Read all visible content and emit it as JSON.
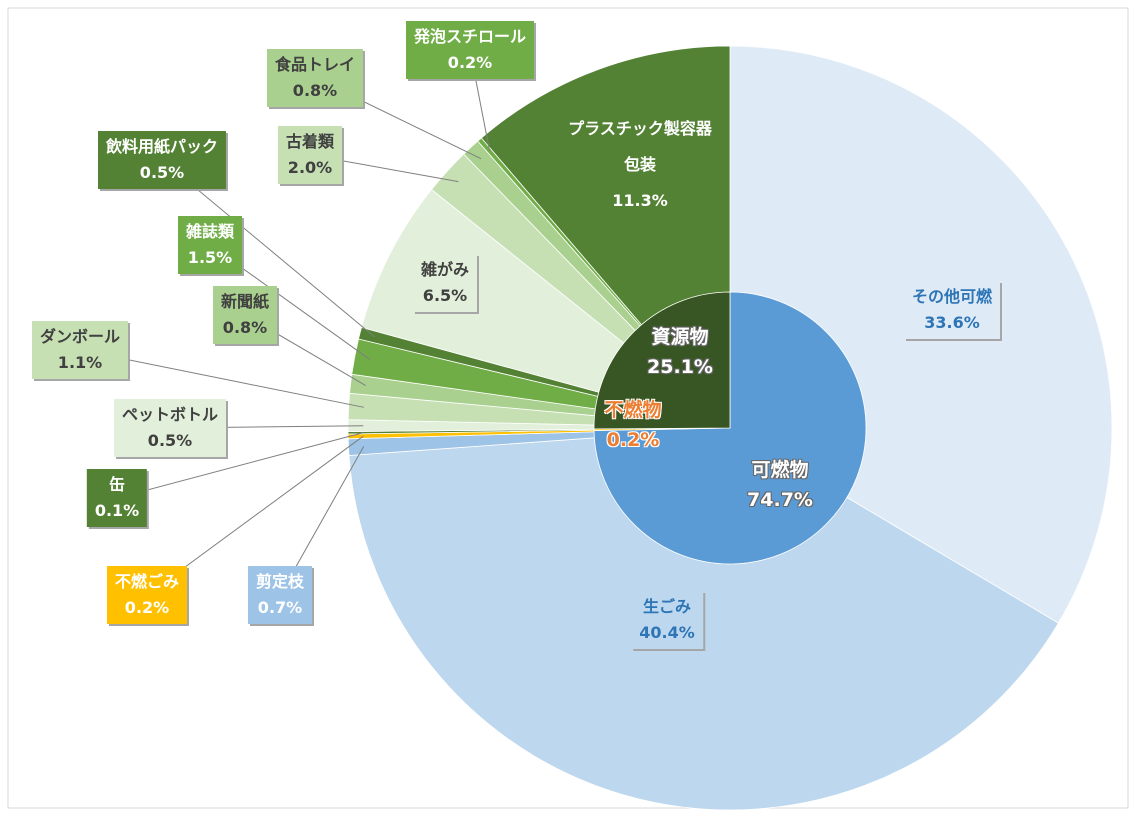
{
  "chart_data": {
    "type": "sunburst",
    "inner": {
      "categories": [
        "可燃物",
        "不燃物",
        "資源物"
      ],
      "values": [
        74.7,
        0.2,
        25.1
      ],
      "value_labels": [
        "74.7%",
        "0.2%",
        "25.1%"
      ],
      "colors": [
        "#5b9bd5",
        "#ffc000",
        "#375623"
      ]
    },
    "outer": {
      "categories": [
        "その他可燃",
        "生ごみ",
        "剪定枝",
        "不燃ごみ",
        "缶",
        "ペットボトル",
        "ダンボール",
        "新聞紙",
        "雑誌類",
        "飲料用紙パック",
        "雑がみ",
        "古着類",
        "食品トレイ",
        "発泡スチロール",
        "プラスチック製容器包装"
      ],
      "values": [
        33.6,
        40.4,
        0.7,
        0.2,
        0.1,
        0.5,
        1.1,
        0.8,
        1.5,
        0.5,
        6.5,
        2.0,
        0.8,
        0.2,
        11.3
      ],
      "value_labels": [
        "33.6%",
        "40.4%",
        "0.7%",
        "0.2%",
        "0.1%",
        "0.5%",
        "1.1%",
        "0.8%",
        "1.5%",
        "0.5%",
        "6.5%",
        "2.0%",
        "0.8%",
        "0.2%",
        "11.3%"
      ],
      "colors": [
        "#deebf7",
        "#bdd7ee",
        "#9dc3e6",
        "#ffc000",
        "#548235",
        "#e2efda",
        "#c6e0b4",
        "#a9d08e",
        "#70ad47",
        "#548235",
        "#e2efda",
        "#c6e0b4",
        "#a9d08e",
        "#70ad47",
        "#548235"
      ]
    }
  }
}
